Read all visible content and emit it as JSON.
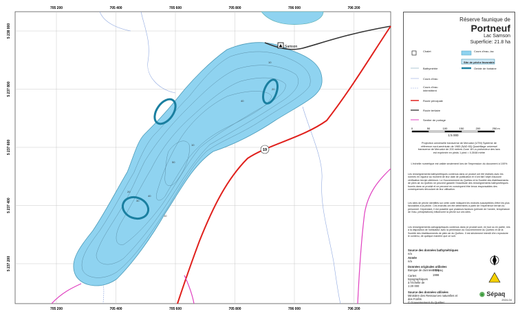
{
  "map": {
    "grid_x": [
      "705 200",
      "705 400",
      "705 600",
      "705 800",
      "706 000",
      "706 200"
    ],
    "grid_y": [
      "5 238 000",
      "5 237 800",
      "5 237 600",
      "5 237 400",
      "5 237 200"
    ],
    "chalet": "Samson",
    "route": "19",
    "depths": [
      "10",
      "20",
      "40",
      "50",
      "10",
      "20",
      "30",
      "40",
      "10"
    ]
  },
  "panel": {
    "title1": "Réserve faunique de",
    "title2": "Portneuf",
    "lake": "Lac Samson",
    "area": "Superficie:  21.8 ha",
    "legend": {
      "chalet": "Chalet",
      "lac": "Cours d'eau, lac",
      "bathy": "Bathymétrie",
      "site": "Site de pêche favorable",
      "cours": "Cours d'eau",
      "omble": "Omble de fontaine",
      "intermittent": "Cours d'eau intermittent",
      "principale": "Route principale",
      "tertiaire": "Route tertiaire",
      "sentier": "Sentier de portage"
    },
    "scale": [
      "0",
      "50",
      "100",
      "150",
      "200",
      "250",
      "m"
    ],
    "ratio": "1:5 000",
    "projection": "Projection universelle transverse de Mercator (UTM) Système de référence nord-américain de 1983 (NAD 83) Quadrillage universel transverse de Mercator de 200 mètres Zone 18 La profondeur des lacs est exprimée en pieds 1 pied = 0,3048 mètre",
    "echelle": "L'échelle numérique est valide seulement lors de l'impression du document à 100%",
    "para1": "Les renseignements bathymétriques contenus dans ce produit ont été réalisés avec les normes en vigueur au moment de leur date de publication et n'ont fait l'objet d'aucune vérification terrain ultérieure. Le Gouvernement du Québec et la Société des établissements de plein air du Québec ne peuvent garantir l'exactitude des renseignements bathymétriques fournis dans ce produit et ne peuvent en conséquent être tenus responsables des conséquences découlant de leur utilisation.",
    "para2": "Les sites de pêche identifiés sur cette carte indiquent les endroits susceptibles d'être les plus favorables à la pêche. Ces endroits ont été déterminés à partir de l'expérience terrain du personnel. Cependant, il est possible que plusieurs facteurs (période de l'année, température de l'eau, précipitations) influencent la pêche sur ces sites.",
    "para3": "Les renseignements cartographiques contenus dans ce produit sont, en tout ou en partie, mis à la disposition de l'utilisateur avec la permission du Gouvernement du Québec et de la Société des établissements de plein air du Québec. Il est strictement interdit d'en reproduire le contenu, de quelque manière que ce soit.",
    "src1": "Source des données bathymétriques",
    "src1v": "n/a",
    "annee": "Année",
    "anneev": "n/a",
    "orig": "Données originales utilisées",
    "orig1": "Banque de données Sépaq",
    "orig1y": "2024",
    "orig2": "Cartes topographiques à l'échelle de 1:20 000",
    "orig2y": "1998",
    "src2": "Source des données utilisées",
    "src2a": "Ministère des Ressources naturelles et des Forêts",
    "src2b": "© Gouvernement du Québec",
    "brand": "Sépaq",
    "date": "2024-04"
  }
}
